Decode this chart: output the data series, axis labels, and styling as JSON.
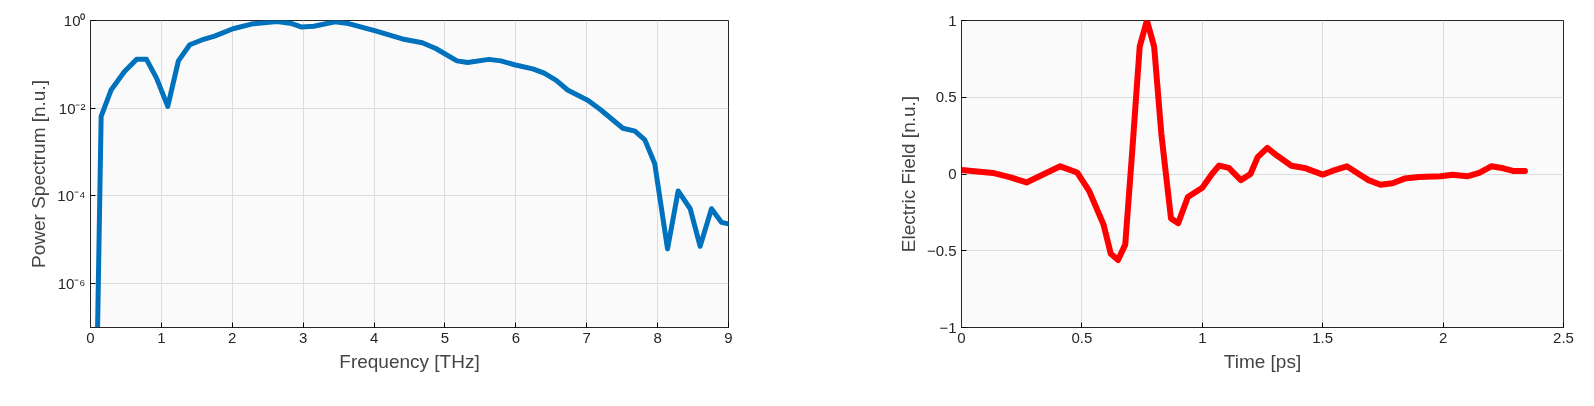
{
  "chart_data": [
    {
      "type": "line",
      "xlabel": "Frequency [THz]",
      "ylabel": "Power Spectrum [n.u.]",
      "log": "y",
      "grid": true,
      "marker": "none",
      "line_style": "solid",
      "xlim": [
        0,
        9
      ],
      "xticks": [
        0,
        1,
        2,
        3,
        4,
        5,
        6,
        7,
        8,
        9
      ],
      "ylim": [
        1e-07,
        1
      ],
      "yticks": [
        {
          "value": 1,
          "label": "10⁰"
        },
        {
          "value": 0.01,
          "label": "10⁻²"
        },
        {
          "value": 0.0001,
          "label": "10⁻⁴"
        },
        {
          "value": 1e-06,
          "label": "10⁻⁶"
        }
      ],
      "x": [
        0.1,
        0.15,
        0.29,
        0.48,
        0.65,
        0.79,
        0.93,
        1.09,
        1.24,
        1.4,
        1.57,
        1.75,
        2.01,
        2.27,
        2.63,
        2.84,
        2.98,
        3.15,
        3.45,
        3.64,
        4.02,
        4.4,
        4.68,
        4.87,
        5.17,
        5.32,
        5.62,
        5.79,
        5.98,
        6.24,
        6.4,
        6.57,
        6.73,
        7.02,
        7.2,
        7.37,
        7.51,
        7.68,
        7.82,
        7.96,
        8.14,
        8.29,
        8.46,
        8.6,
        8.76,
        8.9,
        9.0
      ],
      "series": [
        {
          "color": "#0072bd",
          "values": [
            1e-07,
            0.0065,
            0.026,
            0.069,
            0.13,
            0.13,
            0.049,
            0.011,
            0.12,
            0.28,
            0.36,
            0.44,
            0.65,
            0.83,
            0.95,
            0.85,
            0.71,
            0.74,
            0.93,
            0.85,
            0.58,
            0.38,
            0.31,
            0.23,
            0.12,
            0.11,
            0.13,
            0.12,
            0.098,
            0.079,
            0.063,
            0.043,
            0.026,
            0.015,
            0.0091,
            0.0054,
            0.0035,
            0.003,
            0.0019,
            0.00054,
            6.2e-06,
            0.00013,
            5.1e-05,
            7.1e-06,
            5.1e-05,
            2.5e-05,
            2.3e-05
          ]
        }
      ]
    },
    {
      "type": "line",
      "xlabel": "Time [ps]",
      "ylabel": "Electric Field [n.u.]",
      "grid": true,
      "marker": "none",
      "line_style": "solid",
      "xlim": [
        0,
        2.5
      ],
      "xticks": [
        0,
        0.5,
        1,
        1.5,
        2,
        2.5
      ],
      "ylim": [
        -1,
        1
      ],
      "yticks": [
        -1,
        -0.5,
        0,
        0.5,
        1
      ],
      "x": [
        0,
        0.13,
        0.2,
        0.27,
        0.33,
        0.41,
        0.48,
        0.53,
        0.59,
        0.62,
        0.65,
        0.68,
        0.71,
        0.74,
        0.77,
        0.8,
        0.83,
        0.87,
        0.9,
        0.94,
        1.0,
        1.04,
        1.07,
        1.11,
        1.16,
        1.2,
        1.23,
        1.27,
        1.31,
        1.37,
        1.43,
        1.5,
        1.54,
        1.6,
        1.65,
        1.69,
        1.74,
        1.79,
        1.84,
        1.9,
        1.99,
        2.04,
        2.1,
        2.15,
        2.2,
        2.25,
        2.29,
        2.34
      ],
      "series": [
        {
          "color": "#ff0000",
          "values": [
            0.026,
            0.007,
            -0.02,
            -0.055,
            -0.01,
            0.05,
            0.01,
            -0.11,
            -0.33,
            -0.52,
            -0.56,
            -0.46,
            0.17,
            0.83,
            1.0,
            0.83,
            0.26,
            -0.29,
            -0.32,
            -0.15,
            -0.09,
            0.0,
            0.055,
            0.04,
            -0.04,
            0,
            0.11,
            0.17,
            0.12,
            0.054,
            0.037,
            -0.004,
            0.02,
            0.05,
            0,
            -0.04,
            -0.07,
            -0.06,
            -0.03,
            -0.02,
            -0.015,
            -0.005,
            -0.015,
            0.007,
            0.05,
            0.037,
            0.02,
            0.02
          ]
        }
      ]
    }
  ]
}
